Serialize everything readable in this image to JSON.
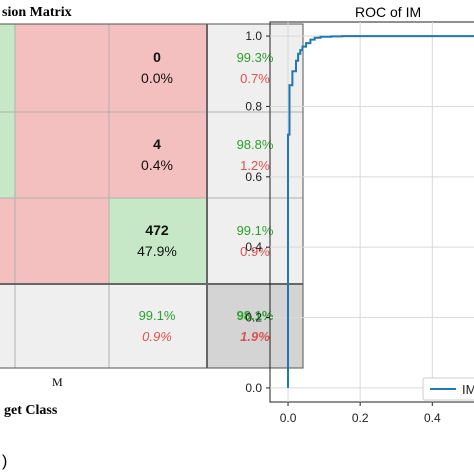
{
  "confusion": {
    "title": "sion Matrix",
    "xlabel": "get Class",
    "col_label_m": "M",
    "panel_tag": ")",
    "rows": [
      [
        "",
        "0",
        "0.0%",
        "99.3%",
        "0.7%"
      ],
      [
        "",
        "4",
        "0.4%",
        "98.8%",
        "1.2%"
      ],
      [
        "",
        "472",
        "47.9%",
        "99.1%",
        "0.9%"
      ],
      [
        "",
        "99.1%",
        "0.9%",
        "98.1%",
        "1.9%"
      ]
    ],
    "colors": {
      "red": "#f4bfbf",
      "green": "#c7e8c7",
      "grey": "#efefef",
      "dark_grey": "#d4d4d4",
      "pos_text": "#2ca02c",
      "neg_text": "#d9534f"
    }
  },
  "chart_data": {
    "type": "line",
    "title": "ROC of IM",
    "xlabel": "",
    "ylabel": "",
    "xlim": [
      -0.05,
      0.56
    ],
    "ylim": [
      -0.04,
      1.04
    ],
    "xticks": [
      "0.0",
      "0.2",
      "0.4"
    ],
    "yticks": [
      "0.0",
      "0.2",
      "0.4",
      "0.6",
      "0.8",
      "1.0"
    ],
    "xtick_values": [
      0.0,
      0.2,
      0.4
    ],
    "ytick_values": [
      0.0,
      0.2,
      0.4,
      0.6,
      0.8,
      1.0
    ],
    "grid": true,
    "legend": "bottom-right",
    "series": [
      {
        "name": "IM",
        "color": "#1f77b4",
        "x": [
          0.0,
          0.0,
          0.004,
          0.004,
          0.012,
          0.012,
          0.022,
          0.022,
          0.028,
          0.028,
          0.034,
          0.034,
          0.04,
          0.04,
          0.05,
          0.05,
          0.062,
          0.062,
          0.074,
          0.074,
          0.09,
          0.09,
          0.12,
          0.12,
          0.15,
          0.15,
          0.56
        ],
        "y": [
          0.0,
          0.72,
          0.72,
          0.86,
          0.86,
          0.9,
          0.9,
          0.93,
          0.93,
          0.95,
          0.95,
          0.96,
          0.96,
          0.97,
          0.97,
          0.98,
          0.98,
          0.99,
          0.99,
          0.995,
          0.995,
          0.998,
          0.998,
          0.999,
          0.999,
          1.0,
          1.0
        ]
      }
    ]
  }
}
